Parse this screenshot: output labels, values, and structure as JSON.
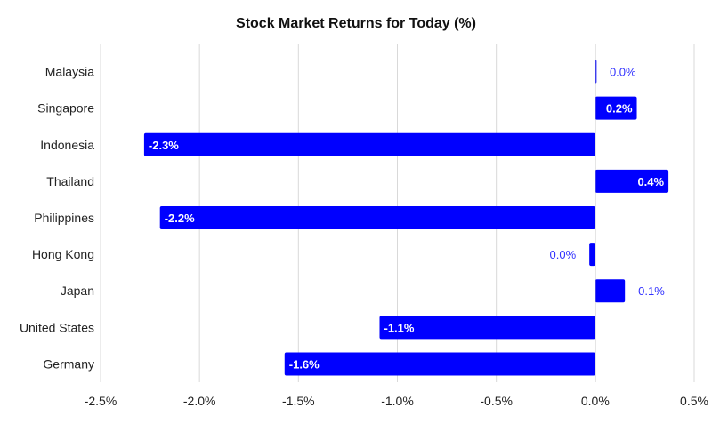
{
  "chart_data": {
    "type": "bar",
    "orientation": "horizontal",
    "title": "Stock Market Returns for Today (%)",
    "categories": [
      "Malaysia",
      "Singapore",
      "Indonesia",
      "Thailand",
      "Philippines",
      "Hong Kong",
      "Japan",
      "United States",
      "Germany"
    ],
    "values": [
      0.005,
      0.21,
      -2.28,
      0.37,
      -2.2,
      -0.03,
      0.15,
      -1.09,
      -1.57
    ],
    "data_labels": [
      "0.0%",
      "0.2%",
      "-2.3%",
      "0.4%",
      "-2.2%",
      "0.0%",
      "0.1%",
      "-1.1%",
      "-1.6%"
    ],
    "xlim": [
      -2.5,
      0.5
    ],
    "xticks": [
      -2.5,
      -2.0,
      -1.5,
      -1.0,
      -0.5,
      0.0,
      0.5
    ],
    "xtick_labels": [
      "-2.5%",
      "-2.0%",
      "-1.5%",
      "-1.0%",
      "-0.5%",
      "0.0%",
      "0.5%"
    ],
    "grid": "vertical",
    "bar_color": "#0000ff",
    "label_color_outside": "#3333ff",
    "label_color_inside": "#ffffff"
  }
}
